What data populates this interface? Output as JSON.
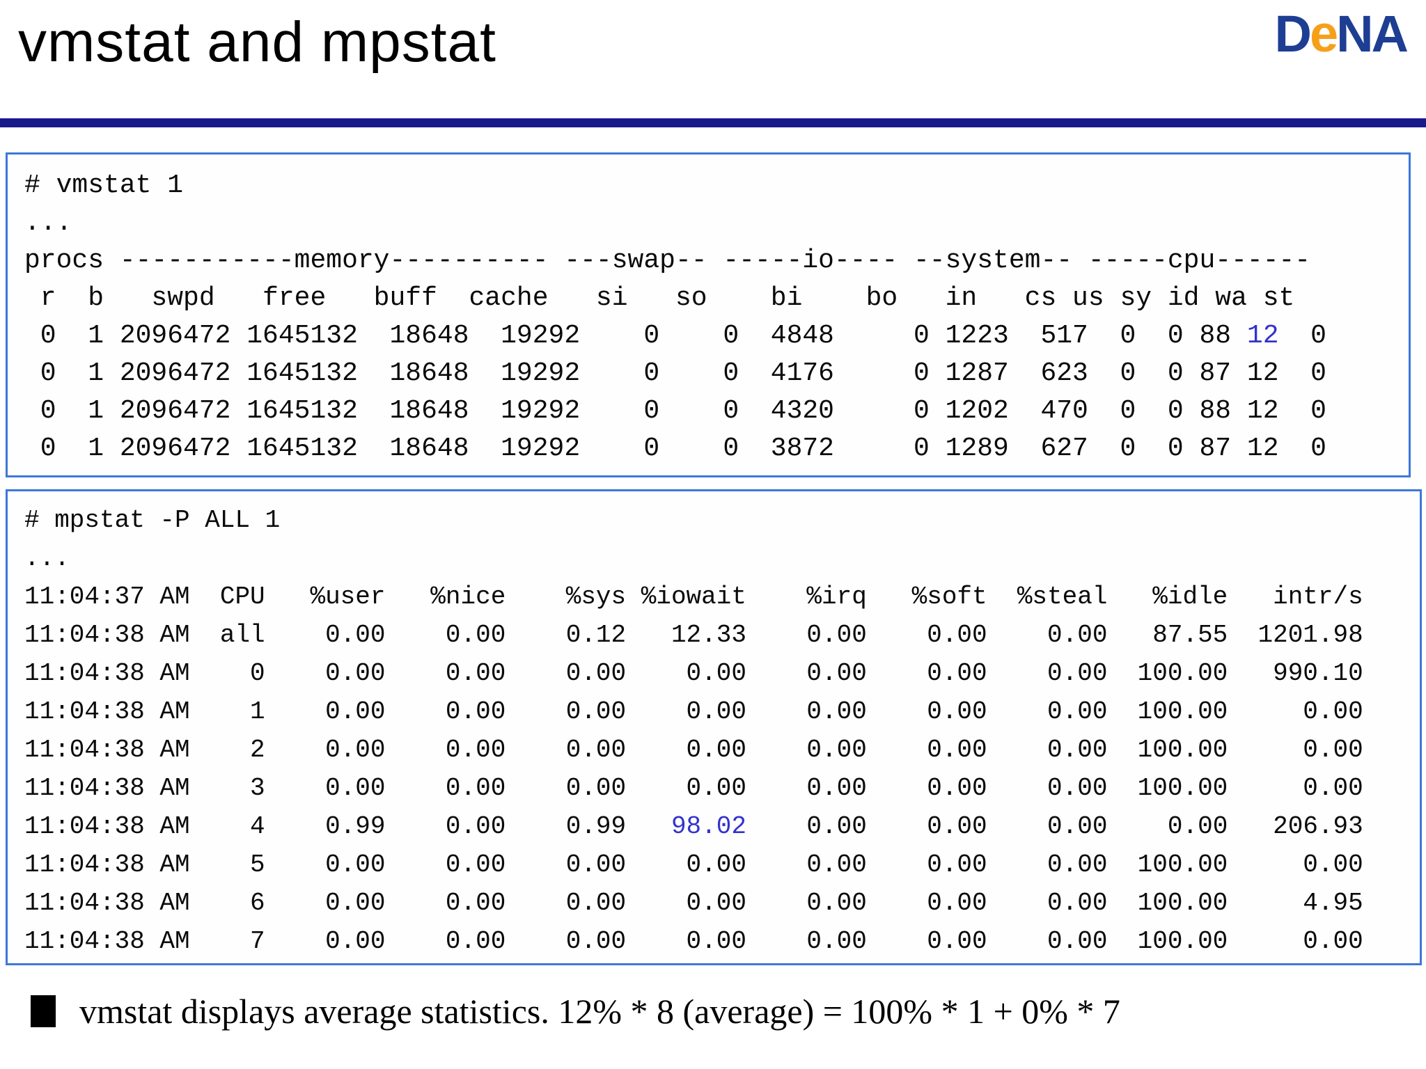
{
  "title": "vmstat and mpstat",
  "logo": {
    "part1": "D",
    "part2": "e",
    "part3": "NA"
  },
  "colors": {
    "title_rule_navy": "#1A1A8C",
    "box_border_blue": "#3C78D8",
    "highlight_blue": "#3333CC",
    "logo_blue": "#1E3E93",
    "logo_orange": "#F6A01A"
  },
  "vmstat": {
    "command": "# vmstat 1",
    "ellipsis": "...",
    "header1": "procs -----------memory---------- ---swap-- -----io---- --system-- -----cpu------",
    "header2": " r  b   swpd   free   buff  cache   si   so    bi    bo   in   cs us sy id wa st",
    "rows": [
      [
        {
          "t": " 0  1 2096472 1645132  18648  19292    0    0  4848     0 1223  517  0  0 88 "
        },
        {
          "t": "12",
          "hl": true
        },
        {
          "t": "  0"
        }
      ],
      [
        {
          "t": " 0  1 2096472 1645132  18648  19292    0    0  4176     0 1287  623  0  0 87 12  0"
        }
      ],
      [
        {
          "t": " 0  1 2096472 1645132  18648  19292    0    0  4320     0 1202  470  0  0 88 12  0"
        }
      ],
      [
        {
          "t": " 0  1 2096472 1645132  18648  19292    0    0  3872     0 1289  627  0  0 87 12  0"
        }
      ]
    ]
  },
  "mpstat": {
    "command": "# mpstat -P ALL 1",
    "ellipsis": "...",
    "header": "11:04:37 AM  CPU   %user   %nice    %sys %iowait    %irq   %soft  %steal   %idle   intr/s",
    "rows": [
      [
        {
          "t": "11:04:38 AM  all    0.00    0.00    0.12   12.33    0.00    0.00    0.00   87.55  1201.98"
        }
      ],
      [
        {
          "t": "11:04:38 AM    0    0.00    0.00    0.00    0.00    0.00    0.00    0.00  100.00   990.10"
        }
      ],
      [
        {
          "t": "11:04:38 AM    1    0.00    0.00    0.00    0.00    0.00    0.00    0.00  100.00     0.00"
        }
      ],
      [
        {
          "t": "11:04:38 AM    2    0.00    0.00    0.00    0.00    0.00    0.00    0.00  100.00     0.00"
        }
      ],
      [
        {
          "t": "11:04:38 AM    3    0.00    0.00    0.00    0.00    0.00    0.00    0.00  100.00     0.00"
        }
      ],
      [
        {
          "t": "11:04:38 AM    4    0.99    0.00    0.99   "
        },
        {
          "t": "98.02",
          "hl": true
        },
        {
          "t": "    0.00    0.00    0.00    0.00   206.93"
        }
      ],
      [
        {
          "t": "11:04:38 AM    5    0.00    0.00    0.00    0.00    0.00    0.00    0.00  100.00     0.00"
        }
      ],
      [
        {
          "t": "11:04:38 AM    6    0.00    0.00    0.00    0.00    0.00    0.00    0.00  100.00     4.95"
        }
      ],
      [
        {
          "t": "11:04:38 AM    7    0.00    0.00    0.00    0.00    0.00    0.00    0.00  100.00     0.00"
        }
      ]
    ]
  },
  "note": {
    "text": "vmstat displays average statistics. 12% * 8 (average) = 100% * 1 + 0% * 7"
  }
}
